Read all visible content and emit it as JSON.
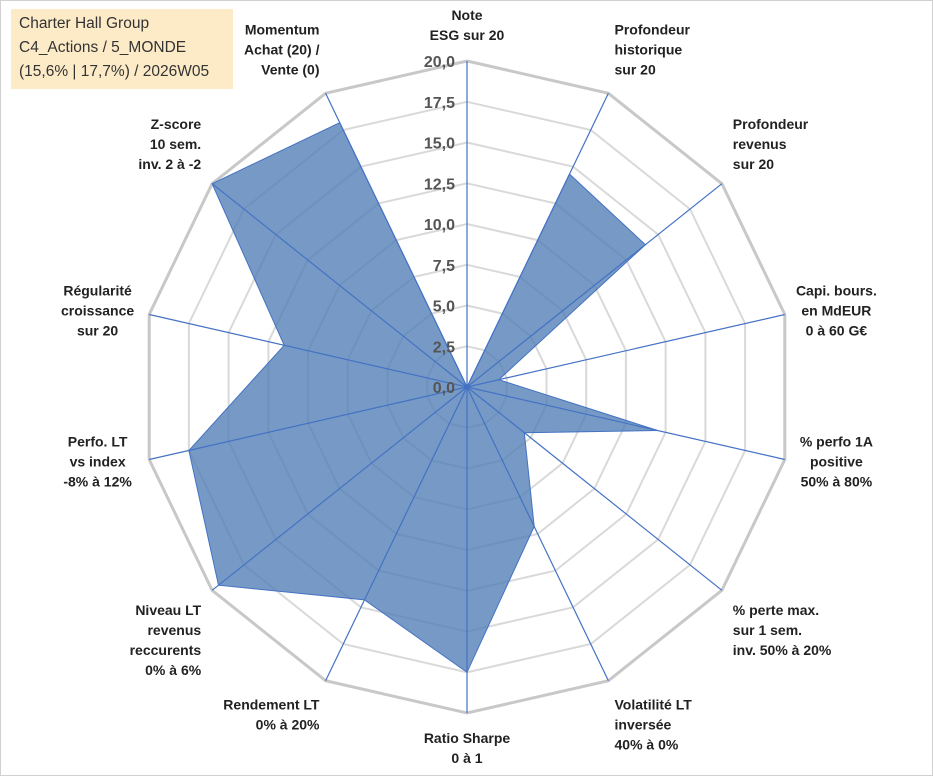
{
  "info_box": {
    "line1": "Charter Hall Group",
    "line2": "C4_Actions / 5_MONDE",
    "line3": "(15,6% | 17,7%) / 2026W05"
  },
  "colors": {
    "fill": "#4f7db5",
    "stroke": "#4472c4",
    "grid_outer": "#c8c8c8",
    "grid_inner": "#d9d9d9",
    "box_bg": "#fdebc8"
  },
  "chart_data": {
    "type": "radar",
    "title": "",
    "rmax": 20,
    "ticks": [
      "0,0",
      "2,5",
      "5,0",
      "7,5",
      "10,0",
      "12,5",
      "15,0",
      "17,5",
      "20,0"
    ],
    "axes": [
      [
        "Note",
        "ESG sur 20"
      ],
      [
        "Profondeur",
        "historique",
        "sur 20"
      ],
      [
        "Profondeur",
        "revenus",
        "sur 20"
      ],
      [
        "Capi. bours.",
        "en MdEUR",
        "0 à 60 G€"
      ],
      [
        "% perfo 1A",
        "positive",
        "50% à 80%"
      ],
      [
        "% perte max.",
        "sur 1 sem.",
        "inv. 50% à 20%"
      ],
      [
        "Volatilité LT",
        "inversée",
        "40% à 0%"
      ],
      [
        "Ratio Sharpe",
        "0 à 1"
      ],
      [
        "Rendement LT",
        "0% à 20%"
      ],
      [
        "Niveau LT",
        "revenus",
        "reccurents",
        "0% à 6%"
      ],
      [
        "Perfo. LT",
        "vs index",
        "-8% à 12%"
      ],
      [
        "Régularité",
        "croissance",
        "sur 20"
      ],
      [
        "Z-score",
        "10 sem.",
        "inv. 2 à -2"
      ],
      [
        "Momentum",
        "Achat (20) /",
        "Vente (0)"
      ]
    ],
    "series": [
      {
        "name": "Charter Hall Group",
        "values": [
          0,
          14.5,
          14,
          2,
          12,
          4.5,
          9.5,
          17.5,
          14.5,
          19.5,
          17.5,
          11.5,
          20,
          18
        ]
      }
    ]
  }
}
